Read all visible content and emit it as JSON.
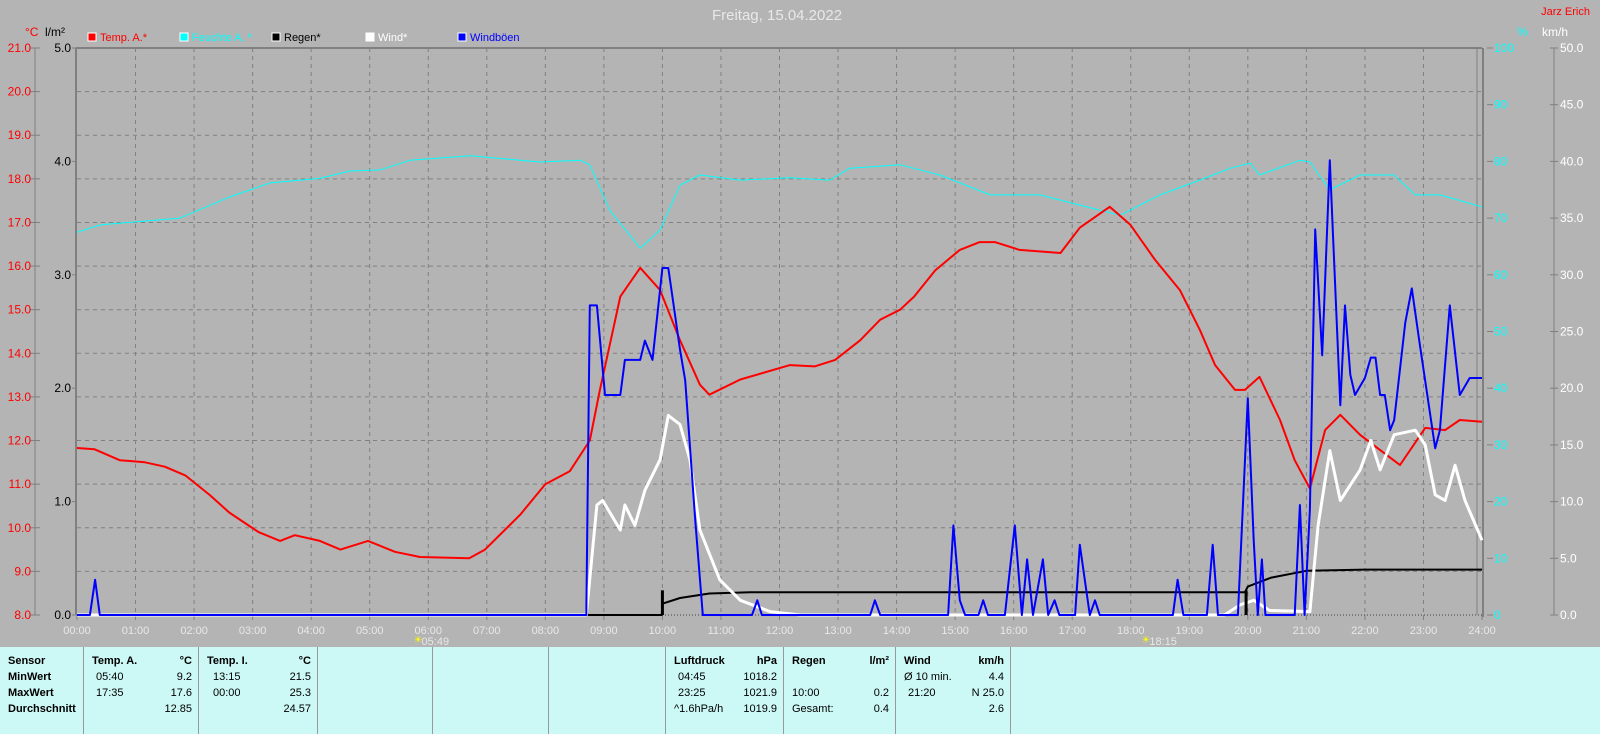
{
  "chart_data": {
    "type": "line",
    "title": "Freitag, 15.04.2022",
    "author": "Jarz Erich",
    "x_unit": "hour of day",
    "x_range": [
      0,
      24
    ],
    "x_ticks": [
      "00:00",
      "01:00",
      "02:00",
      "03:00",
      "04:00",
      "05:00",
      "06:00",
      "07:00",
      "08:00",
      "09:00",
      "10:00",
      "11:00",
      "12:00",
      "13:00",
      "14:00",
      "15:00",
      "16:00",
      "17:00",
      "18:00",
      "19:00",
      "20:00",
      "21:00",
      "22:00",
      "23:00",
      "24:00"
    ],
    "axes": {
      "temp": {
        "label": "°C",
        "range": [
          8,
          21
        ],
        "ticks": [
          "8.0",
          "9.0",
          "10.0",
          "11.0",
          "12.0",
          "13.0",
          "14.0",
          "15.0",
          "16.0",
          "17.0",
          "18.0",
          "19.0",
          "20.0",
          "21.0"
        ]
      },
      "rain": {
        "label": "l/m²",
        "range": [
          0,
          5
        ],
        "ticks": [
          "0.0",
          "1.0",
          "2.0",
          "3.0",
          "4.0",
          "5.0"
        ]
      },
      "humidity": {
        "label": "%",
        "range": [
          0,
          100
        ],
        "ticks": [
          "0",
          "10",
          "20",
          "30",
          "40",
          "50",
          "60",
          "70",
          "80",
          "90",
          "100"
        ]
      },
      "wind": {
        "label": "km/h",
        "range": [
          0,
          50
        ],
        "ticks": [
          "0.0",
          "5.0",
          "10.0",
          "15.0",
          "20.0",
          "25.0",
          "30.0",
          "35.0",
          "40.0",
          "45.0",
          "50.0"
        ]
      }
    },
    "grid": true,
    "legend_position": "top-left",
    "sun_events": [
      {
        "time": "05:49",
        "hour": 5.817,
        "type": "sunrise"
      },
      {
        "time": "18:15",
        "hour": 18.25,
        "type": "sunset"
      }
    ],
    "series": [
      {
        "name": "Temp. A.*",
        "axis": "temp",
        "color": "#ff0000",
        "points": [
          [
            0,
            11.83
          ],
          [
            0.3,
            11.8
          ],
          [
            0.73,
            11.55
          ],
          [
            1.16,
            11.5
          ],
          [
            1.5,
            11.4
          ],
          [
            1.85,
            11.2
          ],
          [
            2.27,
            10.75
          ],
          [
            2.6,
            10.35
          ],
          [
            3.1,
            9.9
          ],
          [
            3.47,
            9.7
          ],
          [
            3.72,
            9.83
          ],
          [
            4.15,
            9.7
          ],
          [
            4.5,
            9.5
          ],
          [
            4.97,
            9.7
          ],
          [
            5.43,
            9.45
          ],
          [
            5.86,
            9.33
          ],
          [
            6.7,
            9.3
          ],
          [
            6.97,
            9.5
          ],
          [
            7.57,
            10.3
          ],
          [
            8.0,
            11.0
          ],
          [
            8.42,
            11.3
          ],
          [
            8.76,
            12.0
          ],
          [
            8.93,
            13.15
          ],
          [
            9.28,
            15.3
          ],
          [
            9.62,
            15.96
          ],
          [
            9.96,
            15.45
          ],
          [
            10.3,
            14.3
          ],
          [
            10.64,
            13.28
          ],
          [
            10.8,
            13.05
          ],
          [
            11.33,
            13.4
          ],
          [
            12.18,
            13.73
          ],
          [
            12.6,
            13.7
          ],
          [
            12.95,
            13.85
          ],
          [
            13.38,
            14.3
          ],
          [
            13.72,
            14.77
          ],
          [
            14.06,
            15.0
          ],
          [
            14.3,
            15.3
          ],
          [
            14.66,
            15.9
          ],
          [
            15.08,
            16.37
          ],
          [
            15.42,
            16.55
          ],
          [
            15.68,
            16.55
          ],
          [
            16.1,
            16.37
          ],
          [
            16.8,
            16.3
          ],
          [
            17.13,
            16.88
          ],
          [
            17.64,
            17.36
          ],
          [
            17.99,
            16.95
          ],
          [
            18.41,
            16.15
          ],
          [
            18.84,
            15.45
          ],
          [
            19.18,
            14.54
          ],
          [
            19.44,
            13.73
          ],
          [
            19.78,
            13.16
          ],
          [
            19.95,
            13.16
          ],
          [
            20.2,
            13.46
          ],
          [
            20.55,
            12.47
          ],
          [
            20.8,
            11.55
          ],
          [
            21.06,
            10.9
          ],
          [
            21.32,
            12.24
          ],
          [
            21.58,
            12.59
          ],
          [
            21.92,
            12.13
          ],
          [
            22.26,
            11.78
          ],
          [
            22.6,
            11.44
          ],
          [
            23.03,
            12.29
          ],
          [
            23.37,
            12.24
          ],
          [
            23.62,
            12.47
          ],
          [
            24,
            12.43
          ]
        ]
      },
      {
        "name": "Feuchte A. *",
        "axis": "humidity",
        "color": "#00ffff",
        "points": [
          [
            0,
            67.5
          ],
          [
            0.4,
            68.8
          ],
          [
            1.76,
            70
          ],
          [
            2.6,
            73.7
          ],
          [
            3.3,
            76.2
          ],
          [
            4.15,
            77
          ],
          [
            4.66,
            78.3
          ],
          [
            5.18,
            78.5
          ],
          [
            5.69,
            80.2
          ],
          [
            6.71,
            81
          ],
          [
            7.9,
            79.9
          ],
          [
            8.6,
            80.2
          ],
          [
            8.76,
            79.4
          ],
          [
            9.1,
            71.4
          ],
          [
            9.62,
            64.7
          ],
          [
            9.96,
            67.9
          ],
          [
            10.3,
            75.8
          ],
          [
            10.64,
            77.6
          ],
          [
            11.33,
            76.7
          ],
          [
            12.18,
            77.1
          ],
          [
            12.86,
            76.7
          ],
          [
            13.2,
            78.8
          ],
          [
            14.06,
            79.4
          ],
          [
            14.74,
            77.6
          ],
          [
            15.6,
            74.1
          ],
          [
            16.45,
            74.1
          ],
          [
            17.13,
            72.3
          ],
          [
            17.82,
            70.5
          ],
          [
            18.5,
            74.1
          ],
          [
            19.18,
            76.7
          ],
          [
            19.7,
            78.8
          ],
          [
            20.04,
            79.7
          ],
          [
            20.2,
            77.6
          ],
          [
            20.89,
            80.2
          ],
          [
            21.06,
            79.9
          ],
          [
            21.4,
            75
          ],
          [
            21.92,
            77.6
          ],
          [
            22.5,
            77.6
          ],
          [
            22.86,
            74.1
          ],
          [
            23.28,
            74.1
          ],
          [
            24,
            72
          ]
        ]
      },
      {
        "name": "Regen*",
        "axis": "rain",
        "color": "#000000",
        "points": [
          [
            0,
            0
          ],
          [
            9.99,
            0
          ],
          [
            10.0,
            0.1
          ],
          [
            10.3,
            0.15
          ],
          [
            10.8,
            0.19
          ],
          [
            11.5,
            0.2
          ],
          [
            19.95,
            0.2
          ],
          [
            20.0,
            0.25
          ],
          [
            20.4,
            0.33
          ],
          [
            21,
            0.39
          ],
          [
            22,
            0.4
          ],
          [
            24,
            0.4
          ]
        ]
      },
      {
        "name": "Wind*",
        "axis": "wind",
        "color": "#ffffff",
        "points": [
          [
            0,
            0
          ],
          [
            8.7,
            0
          ],
          [
            8.88,
            9.7
          ],
          [
            8.98,
            10.1
          ],
          [
            9.28,
            7.5
          ],
          [
            9.36,
            9.7
          ],
          [
            9.53,
            7.9
          ],
          [
            9.7,
            11
          ],
          [
            9.96,
            13.7
          ],
          [
            10.1,
            17.6
          ],
          [
            10.3,
            16.8
          ],
          [
            10.47,
            13.7
          ],
          [
            10.64,
            7.5
          ],
          [
            10.98,
            3.1
          ],
          [
            11.33,
            1.3
          ],
          [
            11.84,
            0.3
          ],
          [
            12.35,
            0
          ],
          [
            19.6,
            0
          ],
          [
            19.87,
            0.9
          ],
          [
            20.1,
            1.3
          ],
          [
            20.37,
            0.4
          ],
          [
            21.06,
            0.3
          ],
          [
            21.2,
            7.9
          ],
          [
            21.4,
            14.5
          ],
          [
            21.58,
            10.1
          ],
          [
            21.92,
            12.8
          ],
          [
            22.1,
            15.4
          ],
          [
            22.26,
            12.8
          ],
          [
            22.5,
            15.9
          ],
          [
            22.86,
            16.3
          ],
          [
            23.03,
            15
          ],
          [
            23.2,
            10.6
          ],
          [
            23.37,
            10.1
          ],
          [
            23.54,
            13.2
          ],
          [
            23.71,
            10.1
          ],
          [
            24,
            6.6
          ]
        ]
      },
      {
        "name": "Windböen",
        "axis": "wind",
        "color": "#0000ff",
        "points": [
          [
            0,
            0
          ],
          [
            0.22,
            0
          ],
          [
            0.31,
            3.1
          ],
          [
            0.39,
            0
          ],
          [
            8.7,
            0
          ],
          [
            8.76,
            27.3
          ],
          [
            8.88,
            27.3
          ],
          [
            9.02,
            19.4
          ],
          [
            9.28,
            19.4
          ],
          [
            9.36,
            22.5
          ],
          [
            9.62,
            22.5
          ],
          [
            9.7,
            24.2
          ],
          [
            9.83,
            22.5
          ],
          [
            10.0,
            30.6
          ],
          [
            10.1,
            30.6
          ],
          [
            10.3,
            23.4
          ],
          [
            10.39,
            20.7
          ],
          [
            10.56,
            8.4
          ],
          [
            10.69,
            0
          ],
          [
            11.53,
            0
          ],
          [
            11.62,
            1.3
          ],
          [
            11.7,
            0
          ],
          [
            13.55,
            0
          ],
          [
            13.63,
            1.3
          ],
          [
            13.72,
            0
          ],
          [
            14.88,
            0
          ],
          [
            14.97,
            7.9
          ],
          [
            15.08,
            1.3
          ],
          [
            15.17,
            0
          ],
          [
            15.4,
            0
          ],
          [
            15.48,
            1.3
          ],
          [
            15.56,
            0
          ],
          [
            15.85,
            0
          ],
          [
            16.02,
            7.9
          ],
          [
            16.14,
            0
          ],
          [
            16.23,
            4.9
          ],
          [
            16.33,
            0
          ],
          [
            16.5,
            4.9
          ],
          [
            16.59,
            0
          ],
          [
            16.7,
            1.3
          ],
          [
            16.78,
            0
          ],
          [
            17.05,
            0
          ],
          [
            17.13,
            6.2
          ],
          [
            17.3,
            0
          ],
          [
            17.39,
            1.3
          ],
          [
            17.47,
            0
          ],
          [
            18.72,
            0
          ],
          [
            18.8,
            3.1
          ],
          [
            18.9,
            0
          ],
          [
            19.3,
            0
          ],
          [
            19.4,
            6.2
          ],
          [
            19.49,
            0
          ],
          [
            19.83,
            0
          ],
          [
            20.0,
            19.1
          ],
          [
            20.1,
            6.6
          ],
          [
            20.17,
            0
          ],
          [
            20.24,
            4.9
          ],
          [
            20.3,
            0
          ],
          [
            20.8,
            0
          ],
          [
            20.89,
            9.7
          ],
          [
            20.97,
            0
          ],
          [
            21.06,
            9.3
          ],
          [
            21.15,
            34
          ],
          [
            21.27,
            22.9
          ],
          [
            21.4,
            40.1
          ],
          [
            21.58,
            18.5
          ],
          [
            21.66,
            27.3
          ],
          [
            21.75,
            21.2
          ],
          [
            21.83,
            19.4
          ],
          [
            22.0,
            20.9
          ],
          [
            22.1,
            22.7
          ],
          [
            22.18,
            22.7
          ],
          [
            22.26,
            19.4
          ],
          [
            22.34,
            19.4
          ],
          [
            22.43,
            16.3
          ],
          [
            22.5,
            17.2
          ],
          [
            22.69,
            25.8
          ],
          [
            22.8,
            28.8
          ],
          [
            22.94,
            23.8
          ],
          [
            23.2,
            14.7
          ],
          [
            23.28,
            16.3
          ],
          [
            23.45,
            27.3
          ],
          [
            23.62,
            19.4
          ],
          [
            23.79,
            20.9
          ],
          [
            24,
            20.9
          ]
        ]
      }
    ]
  },
  "table": {
    "sensor": {
      "h": "Sensor",
      "min": "MinWert",
      "max": "MaxWert",
      "avg": "Durchschnitt"
    },
    "tempA": {
      "h": "Temp. A.",
      "unit": "°C",
      "min_t": "05:40",
      "min_v": "9.2",
      "max_t": "17:35",
      "max_v": "17.6",
      "avg_v": "12.85"
    },
    "tempI": {
      "h": "Temp. I.",
      "unit": "°C",
      "min_t": "13:15",
      "min_v": "21.5",
      "max_t": "00:00",
      "max_v": "25.3",
      "avg_v": "24.57"
    },
    "press": {
      "h": "Luftdruck",
      "unit": "hPa",
      "min_t": "04:45",
      "min_v": "1018.2",
      "max_t": "23:25",
      "max_v": "1021.9",
      "avg_t": "^1.6hPa/h",
      "avg_v": "1019.9"
    },
    "rain": {
      "h": "Regen",
      "unit": "l/m²",
      "max_t": "10:00",
      "max_v": "0.2",
      "avg_t": "Gesamt:",
      "avg_v": "0.4"
    },
    "wind": {
      "h": "Wind",
      "unit": "km/h",
      "min_t": "Ø 10 min.",
      "min_v": "4.4",
      "max_t": "21:20",
      "max_v": "N 25.0",
      "avg_v": "2.6"
    }
  }
}
